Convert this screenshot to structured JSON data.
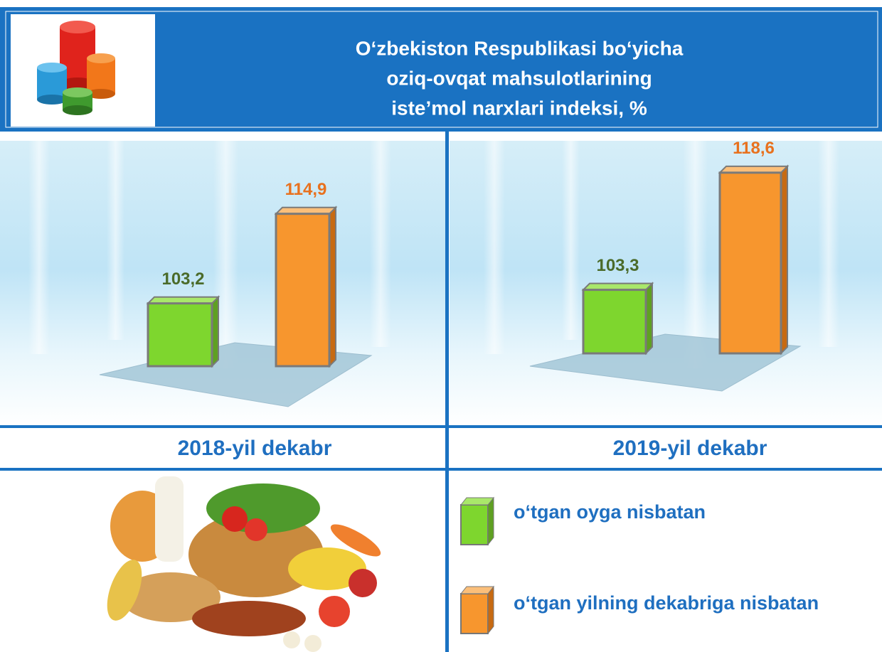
{
  "header": {
    "title": [
      "O‘zbekiston Respublikasi bo‘yicha",
      "oziq-ovqat mahsulotlarining",
      "iste’mol narxlari indeksi, %"
    ]
  },
  "chart_data": [
    {
      "type": "bar",
      "title": "2018-yil dekabr",
      "ylim": [
        95,
        121
      ],
      "series": [
        {
          "name": "o‘tgan oyga nisbatan",
          "color": "#7ed62e",
          "values": [
            103.2
          ],
          "value_labels": [
            "103,2"
          ]
        },
        {
          "name": "o‘tgan yilning dekabriga nisbatan",
          "color": "#f7962e",
          "values": [
            114.9
          ],
          "value_labels": [
            "114,9"
          ]
        }
      ]
    },
    {
      "type": "bar",
      "title": "2019-yil dekabr",
      "ylim": [
        95,
        121
      ],
      "series": [
        {
          "color": "#7ed62e",
          "values": [
            103.3
          ],
          "value_labels": [
            "103,3"
          ]
        },
        {
          "color": "#f7962e",
          "values": [
            118.6
          ],
          "value_labels": [
            "118,6"
          ]
        }
      ]
    }
  ]
}
